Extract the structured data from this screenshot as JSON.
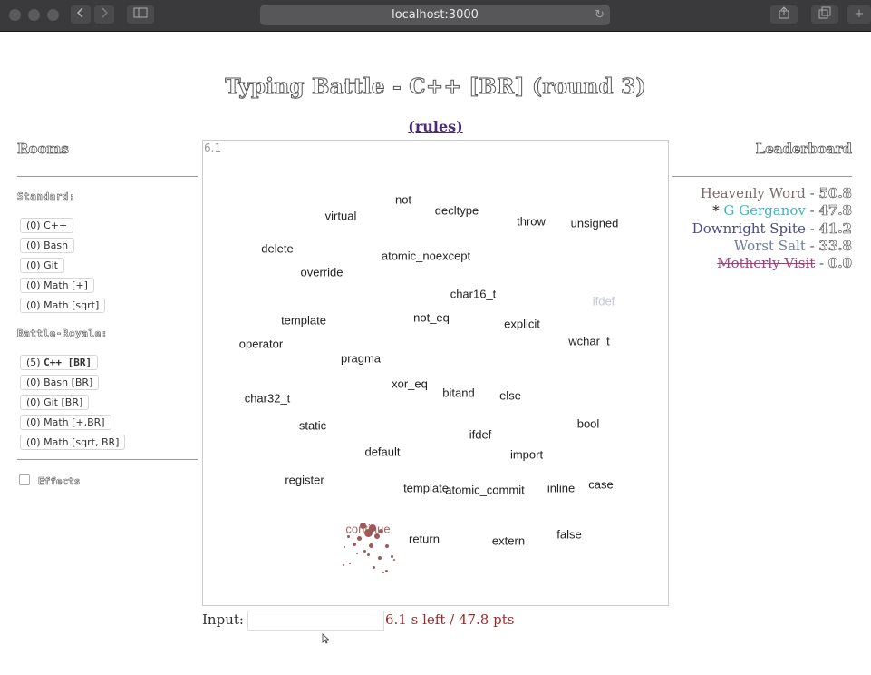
{
  "browser": {
    "url": "localhost:3000",
    "back_icon": "chevron-left-icon",
    "forward_icon": "chevron-right-icon",
    "sidebar_icon": "sidebar-icon",
    "reload_icon": "reload-icon",
    "share_icon": "share-icon",
    "tabs_icon": "tabs-icon"
  },
  "page": {
    "title": "Typing Battle - C++ [BR] (round 3)",
    "rules_link": "(rules)"
  },
  "sidebar": {
    "heading": "Rooms",
    "standard_label": "Standard:",
    "standard_rooms": [
      {
        "count": "(0)",
        "name": "C++"
      },
      {
        "count": "(0)",
        "name": "Bash"
      },
      {
        "count": "(0)",
        "name": "Git"
      },
      {
        "count": "(0)",
        "name": "Math [+]"
      },
      {
        "count": "(0)",
        "name": "Math [sqrt]"
      }
    ],
    "br_label": "Battle-Royale:",
    "br_rooms": [
      {
        "count": "(5)",
        "name": "C++ [BR]",
        "active": true
      },
      {
        "count": "(0)",
        "name": "Bash [BR]"
      },
      {
        "count": "(0)",
        "name": "Git [BR]"
      },
      {
        "count": "(0)",
        "name": "Math [+,BR]"
      },
      {
        "count": "(0)",
        "name": "Math [sqrt, BR]"
      }
    ],
    "effects_label": "Effects",
    "effects_checked": false
  },
  "game": {
    "timer": "6.1",
    "words": [
      {
        "text": "not"
      },
      {
        "text": "virtual"
      },
      {
        "text": "decltype"
      },
      {
        "text": "throw"
      },
      {
        "text": "unsigned"
      },
      {
        "text": "delete"
      },
      {
        "text": "atomic_noexcept"
      },
      {
        "text": "override"
      },
      {
        "text": "char16_t"
      },
      {
        "text": "ifdef",
        "style": "faded"
      },
      {
        "text": "template"
      },
      {
        "text": "not_eq"
      },
      {
        "text": "explicit"
      },
      {
        "text": "operator"
      },
      {
        "text": "wchar_t"
      },
      {
        "text": "pragma"
      },
      {
        "text": "xor_eq"
      },
      {
        "text": "bitand"
      },
      {
        "text": "else"
      },
      {
        "text": "char32_t"
      },
      {
        "text": "static"
      },
      {
        "text": "ifdef"
      },
      {
        "text": "bool"
      },
      {
        "text": "default"
      },
      {
        "text": "import"
      },
      {
        "text": "register"
      },
      {
        "text": "template"
      },
      {
        "text": "atomic_commit"
      },
      {
        "text": "inline"
      },
      {
        "text": "case"
      },
      {
        "text": "continue",
        "style": "hit"
      },
      {
        "text": "return"
      },
      {
        "text": "extern"
      },
      {
        "text": "false"
      }
    ]
  },
  "input": {
    "label": "Input:",
    "value": "",
    "status": "6.1 s left / 47.8 pts"
  },
  "leaderboard": {
    "heading": "Leaderboard",
    "entries": [
      {
        "prefix": "",
        "name": "Heavenly Word",
        "score": "50.8",
        "color": "#7a6a6a",
        "struck": false
      },
      {
        "prefix": "* ",
        "name": "G Gerganov",
        "score": "47.8",
        "color": "#3bb5c9",
        "struck": false
      },
      {
        "prefix": "",
        "name": "Downright Spite",
        "score": "41.2",
        "color": "#4a4a8a",
        "struck": false
      },
      {
        "prefix": "",
        "name": "Worst Salt",
        "score": "33.8",
        "color": "#6f7e9a",
        "struck": false
      },
      {
        "prefix": "",
        "name": "Motherly Visit",
        "score": "0.0",
        "color": "#a0407f",
        "struck": true
      }
    ]
  }
}
